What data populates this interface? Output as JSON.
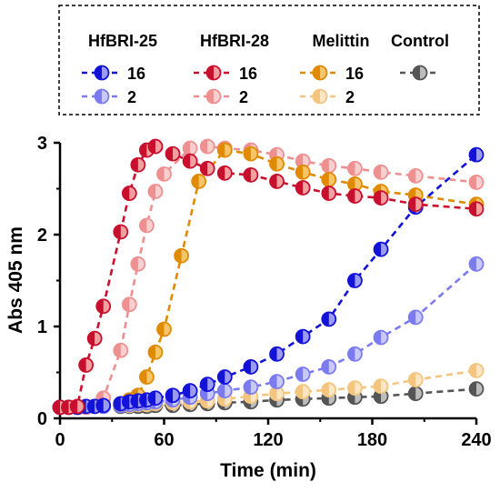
{
  "chart_data": {
    "type": "line",
    "title": "",
    "xlabel": "Time (min)",
    "ylabel": "Abs 405 nm",
    "xlim": [
      0,
      240
    ],
    "ylim": [
      0,
      3
    ],
    "xticks": [
      "0",
      "60",
      "120",
      "180",
      "240"
    ],
    "yticks": [
      "0",
      "1",
      "2",
      "3"
    ],
    "legend_position": "top",
    "legend_groups": [
      {
        "name": "HfBRI-25",
        "entries": [
          "16",
          "2"
        ]
      },
      {
        "name": "HfBRI-28",
        "entries": [
          "16",
          "2"
        ]
      },
      {
        "name": "Melittin",
        "entries": [
          "16",
          "2"
        ]
      },
      {
        "name": "Control",
        "entries": [
          ""
        ]
      }
    ],
    "series": [
      {
        "group": "HfBRI-25",
        "label": "16",
        "color": "#1212d9",
        "light": "#9b9bf2",
        "points": [
          [
            0,
            0.12
          ],
          [
            5,
            0.12
          ],
          [
            10,
            0.12
          ],
          [
            15,
            0.13
          ],
          [
            20,
            0.13
          ],
          [
            25,
            0.14
          ],
          [
            35,
            0.16
          ],
          [
            40,
            0.18
          ],
          [
            45,
            0.19
          ],
          [
            50,
            0.2
          ],
          [
            55,
            0.22
          ],
          [
            65,
            0.25
          ],
          [
            75,
            0.3
          ],
          [
            85,
            0.37
          ],
          [
            95,
            0.45
          ],
          [
            110,
            0.56
          ],
          [
            125,
            0.7
          ],
          [
            140,
            0.89
          ],
          [
            155,
            1.08
          ],
          [
            170,
            1.5
          ],
          [
            185,
            1.84
          ],
          [
            205,
            2.3
          ],
          [
            240,
            2.87
          ]
        ]
      },
      {
        "group": "HfBRI-25",
        "label": "2",
        "color": "#7b7bef",
        "light": "#c9c9f7",
        "points": [
          [
            0,
            0.12
          ],
          [
            5,
            0.12
          ],
          [
            10,
            0.12
          ],
          [
            15,
            0.12
          ],
          [
            20,
            0.13
          ],
          [
            25,
            0.13
          ],
          [
            35,
            0.14
          ],
          [
            40,
            0.15
          ],
          [
            45,
            0.16
          ],
          [
            50,
            0.17
          ],
          [
            55,
            0.18
          ],
          [
            65,
            0.2
          ],
          [
            75,
            0.23
          ],
          [
            85,
            0.27
          ],
          [
            95,
            0.3
          ],
          [
            110,
            0.34
          ],
          [
            125,
            0.4
          ],
          [
            140,
            0.48
          ],
          [
            155,
            0.56
          ],
          [
            170,
            0.7
          ],
          [
            185,
            0.88
          ],
          [
            205,
            1.1
          ],
          [
            240,
            1.68
          ]
        ]
      },
      {
        "group": "HfBRI-28",
        "label": "16",
        "color": "#c8102e",
        "light": "#f2a0a0",
        "points": [
          [
            0,
            0.12
          ],
          [
            5,
            0.12
          ],
          [
            10,
            0.13
          ],
          [
            15,
            0.58
          ],
          [
            20,
            0.87
          ],
          [
            25,
            1.22
          ],
          [
            35,
            2.03
          ],
          [
            40,
            2.45
          ],
          [
            45,
            2.76
          ],
          [
            50,
            2.92
          ],
          [
            55,
            2.96
          ],
          [
            65,
            2.88
          ],
          [
            75,
            2.8
          ],
          [
            85,
            2.72
          ],
          [
            95,
            2.67
          ],
          [
            110,
            2.65
          ],
          [
            125,
            2.58
          ],
          [
            140,
            2.51
          ],
          [
            155,
            2.45
          ],
          [
            170,
            2.42
          ],
          [
            185,
            2.4
          ],
          [
            205,
            2.33
          ],
          [
            240,
            2.28
          ]
        ]
      },
      {
        "group": "HfBRI-28",
        "label": "2",
        "color": "#ee8f90",
        "light": "#f8cfcf",
        "points": [
          [
            0,
            0.12
          ],
          [
            5,
            0.12
          ],
          [
            10,
            0.12
          ],
          [
            15,
            0.12
          ],
          [
            20,
            0.13
          ],
          [
            25,
            0.22
          ],
          [
            35,
            0.74
          ],
          [
            40,
            1.24
          ],
          [
            45,
            1.68
          ],
          [
            50,
            2.1
          ],
          [
            55,
            2.47
          ],
          [
            60,
            2.66
          ],
          [
            75,
            2.94
          ],
          [
            85,
            2.96
          ],
          [
            95,
            2.94
          ],
          [
            110,
            2.92
          ],
          [
            125,
            2.87
          ],
          [
            140,
            2.8
          ],
          [
            155,
            2.75
          ],
          [
            170,
            2.72
          ],
          [
            185,
            2.68
          ],
          [
            205,
            2.64
          ],
          [
            240,
            2.57
          ]
        ]
      },
      {
        "group": "Melittin",
        "label": "16",
        "color": "#e08a00",
        "light": "#f6c56a",
        "points": [
          [
            35,
            0.16
          ],
          [
            40,
            0.2
          ],
          [
            45,
            0.25
          ],
          [
            50,
            0.45
          ],
          [
            55,
            0.72
          ],
          [
            60,
            0.97
          ],
          [
            70,
            1.77
          ],
          [
            80,
            2.58
          ],
          [
            95,
            2.92
          ],
          [
            110,
            2.88
          ],
          [
            125,
            2.77
          ],
          [
            140,
            2.68
          ],
          [
            155,
            2.6
          ],
          [
            170,
            2.55
          ],
          [
            185,
            2.47
          ],
          [
            205,
            2.43
          ],
          [
            240,
            2.33
          ]
        ]
      },
      {
        "group": "Melittin",
        "label": "2",
        "color": "#f3c57e",
        "light": "#fbe6c4",
        "points": [
          [
            35,
            0.14
          ],
          [
            40,
            0.14
          ],
          [
            45,
            0.15
          ],
          [
            50,
            0.15
          ],
          [
            55,
            0.16
          ],
          [
            65,
            0.17
          ],
          [
            75,
            0.18
          ],
          [
            85,
            0.19
          ],
          [
            95,
            0.21
          ],
          [
            110,
            0.24
          ],
          [
            125,
            0.27
          ],
          [
            140,
            0.29
          ],
          [
            155,
            0.31
          ],
          [
            170,
            0.33
          ],
          [
            185,
            0.35
          ],
          [
            205,
            0.42
          ],
          [
            240,
            0.52
          ]
        ]
      },
      {
        "group": "Control",
        "label": "",
        "color": "#555555",
        "light": "#bdbdbd",
        "points": [
          [
            35,
            0.13
          ],
          [
            40,
            0.13
          ],
          [
            45,
            0.13
          ],
          [
            50,
            0.13
          ],
          [
            55,
            0.14
          ],
          [
            65,
            0.14
          ],
          [
            75,
            0.15
          ],
          [
            85,
            0.16
          ],
          [
            95,
            0.17
          ],
          [
            110,
            0.18
          ],
          [
            125,
            0.2
          ],
          [
            140,
            0.21
          ],
          [
            155,
            0.22
          ],
          [
            170,
            0.23
          ],
          [
            185,
            0.24
          ],
          [
            205,
            0.27
          ],
          [
            240,
            0.32
          ]
        ]
      }
    ]
  }
}
